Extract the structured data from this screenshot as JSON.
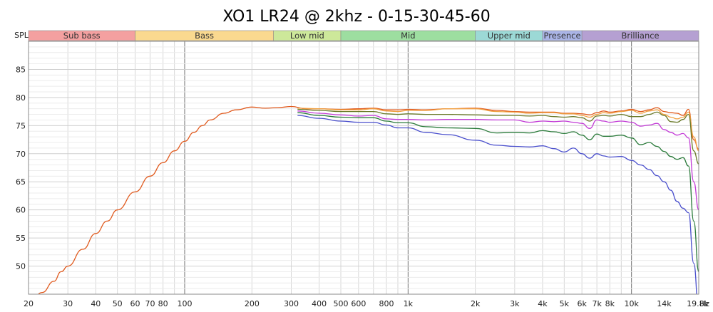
{
  "chart_data": {
    "type": "line",
    "title": "XO1 LR24 @ 2khz - 0-15-30-45-60",
    "ylabel": "SPL",
    "xlabel": "",
    "x_scale": "log",
    "xlim": [
      20,
      20000
    ],
    "ylim": [
      45,
      90
    ],
    "grid": true,
    "legend": "none",
    "x_ticks": [
      {
        "v": 20,
        "l": "20"
      },
      {
        "v": 30,
        "l": "30"
      },
      {
        "v": 40,
        "l": "40"
      },
      {
        "v": 50,
        "l": "50"
      },
      {
        "v": 60,
        "l": "60"
      },
      {
        "v": 70,
        "l": "70"
      },
      {
        "v": 80,
        "l": "80"
      },
      {
        "v": 100,
        "l": "100"
      },
      {
        "v": 200,
        "l": "200"
      },
      {
        "v": 300,
        "l": "300"
      },
      {
        "v": 400,
        "l": "400"
      },
      {
        "v": 500,
        "l": "500"
      },
      {
        "v": 600,
        "l": "600"
      },
      {
        "v": 800,
        "l": "800"
      },
      {
        "v": 1000,
        "l": "1k"
      },
      {
        "v": 2000,
        "l": "2k"
      },
      {
        "v": 3000,
        "l": "3k"
      },
      {
        "v": 4000,
        "l": "4k"
      },
      {
        "v": 5000,
        "l": "5k"
      },
      {
        "v": 6000,
        "l": "6k"
      },
      {
        "v": 7000,
        "l": "7k"
      },
      {
        "v": 8000,
        "l": "8k"
      },
      {
        "v": 10000,
        "l": "10k"
      },
      {
        "v": 14000,
        "l": "14k"
      },
      {
        "v": 19800,
        "l": "19.8k"
      }
    ],
    "x_unit_label": "Hz",
    "y_ticks": [
      50,
      55,
      60,
      65,
      70,
      75,
      80,
      85
    ],
    "bands": [
      {
        "name": "Sub bass",
        "from": 20,
        "to": 60,
        "color": "#f4a0a0"
      },
      {
        "name": "Bass",
        "from": 60,
        "to": 250,
        "color": "#fad98f"
      },
      {
        "name": "Low mid",
        "from": 250,
        "to": 500,
        "color": "#cde89a"
      },
      {
        "name": "Mid",
        "from": 500,
        "to": 2000,
        "color": "#9ddea0"
      },
      {
        "name": "Upper mid",
        "from": 2000,
        "to": 4000,
        "color": "#9cd9d6"
      },
      {
        "name": "Presence",
        "from": 4000,
        "to": 6000,
        "color": "#aab4e6"
      },
      {
        "name": "Brilliance",
        "from": 6000,
        "to": 20000,
        "color": "#b5a0d2"
      }
    ],
    "series": [
      {
        "color": "#e05a1e",
        "points": [
          [
            20,
            43
          ],
          [
            23,
            45.3
          ],
          [
            26,
            47.3
          ],
          [
            28,
            49
          ],
          [
            30,
            50
          ],
          [
            35,
            53
          ],
          [
            40,
            55.8
          ],
          [
            45,
            58
          ],
          [
            50,
            60
          ],
          [
            60,
            63.2
          ],
          [
            70,
            66
          ],
          [
            80,
            68.4
          ],
          [
            90,
            70.5
          ],
          [
            100,
            72.2
          ],
          [
            110,
            73.8
          ],
          [
            120,
            75
          ],
          [
            130,
            76
          ],
          [
            150,
            77.2
          ],
          [
            170,
            77.8
          ],
          [
            200,
            78.3
          ],
          [
            230,
            78.1
          ],
          [
            260,
            78.2
          ],
          [
            300,
            78.4
          ],
          [
            350,
            78
          ],
          [
            400,
            78
          ],
          [
            500,
            77.9
          ],
          [
            600,
            78
          ],
          [
            700,
            78.1
          ],
          [
            800,
            77.8
          ],
          [
            900,
            77.8
          ],
          [
            1000,
            77.9
          ],
          [
            1200,
            77.8
          ],
          [
            1500,
            78
          ],
          [
            2000,
            78.1
          ],
          [
            2500,
            77.7
          ],
          [
            3000,
            77.5
          ],
          [
            3500,
            77.4
          ],
          [
            4000,
            77.4
          ],
          [
            4500,
            77.4
          ],
          [
            5000,
            77.2
          ],
          [
            5500,
            77.2
          ],
          [
            6000,
            77.1
          ],
          [
            6500,
            76.9
          ],
          [
            7000,
            77.3
          ],
          [
            7500,
            77.6
          ],
          [
            8000,
            77.4
          ],
          [
            9000,
            77.6
          ],
          [
            10000,
            77.9
          ],
          [
            11000,
            77.5
          ],
          [
            12000,
            77.8
          ],
          [
            13000,
            78.2
          ],
          [
            14000,
            77.5
          ],
          [
            15000,
            77.3
          ],
          [
            16000,
            77.2
          ],
          [
            17000,
            76.8
          ],
          [
            18000,
            77.9
          ],
          [
            19000,
            72.5
          ],
          [
            20000,
            70.8
          ]
        ]
      },
      {
        "color": "#f0a040",
        "points": [
          [
            320,
            78.1
          ],
          [
            400,
            78
          ],
          [
            500,
            77.8
          ],
          [
            600,
            77.8
          ],
          [
            700,
            78
          ],
          [
            800,
            77.6
          ],
          [
            900,
            77.5
          ],
          [
            1000,
            77.7
          ],
          [
            1200,
            77.7
          ],
          [
            1500,
            78
          ],
          [
            2000,
            78
          ],
          [
            2500,
            77.5
          ],
          [
            3000,
            77.4
          ],
          [
            3500,
            77.2
          ],
          [
            4000,
            77.3
          ],
          [
            4500,
            77.3
          ],
          [
            5000,
            77.1
          ],
          [
            5500,
            77.1
          ],
          [
            6000,
            76.8
          ],
          [
            6500,
            76.5
          ],
          [
            7000,
            77
          ],
          [
            7500,
            77.3
          ],
          [
            8000,
            77.2
          ],
          [
            9000,
            77.5
          ],
          [
            10000,
            77.7
          ],
          [
            11000,
            77.2
          ],
          [
            12000,
            77.6
          ],
          [
            13000,
            77.8
          ],
          [
            14000,
            77
          ],
          [
            15000,
            76.5
          ],
          [
            16000,
            76.2
          ],
          [
            17000,
            76.5
          ],
          [
            18000,
            77.4
          ],
          [
            19000,
            73
          ],
          [
            20000,
            70.5
          ]
        ]
      },
      {
        "color": "#6a7a2a",
        "points": [
          [
            320,
            77.9
          ],
          [
            400,
            77.7
          ],
          [
            500,
            77.5
          ],
          [
            600,
            77.5
          ],
          [
            700,
            77.5
          ],
          [
            800,
            77.1
          ],
          [
            900,
            77
          ],
          [
            1000,
            77.1
          ],
          [
            1200,
            77
          ],
          [
            1500,
            77
          ],
          [
            2000,
            76.9
          ],
          [
            2500,
            76.8
          ],
          [
            3000,
            76.8
          ],
          [
            3500,
            76.7
          ],
          [
            4000,
            76.8
          ],
          [
            4500,
            76.6
          ],
          [
            5000,
            76.5
          ],
          [
            5500,
            76.6
          ],
          [
            6000,
            76.4
          ],
          [
            6500,
            75.8
          ],
          [
            7000,
            76.7
          ],
          [
            7500,
            76.8
          ],
          [
            8000,
            76.7
          ],
          [
            9000,
            77
          ],
          [
            10000,
            76.6
          ],
          [
            11000,
            76.6
          ],
          [
            12000,
            77
          ],
          [
            13000,
            77.4
          ],
          [
            14000,
            76.8
          ],
          [
            15000,
            75.7
          ],
          [
            16000,
            75.6
          ],
          [
            17000,
            76.1
          ],
          [
            18000,
            77
          ],
          [
            19000,
            70.5
          ],
          [
            20000,
            68.2
          ]
        ]
      },
      {
        "color": "#c23bd6",
        "points": [
          [
            320,
            77.6
          ],
          [
            400,
            77.2
          ],
          [
            500,
            76.9
          ],
          [
            600,
            76.7
          ],
          [
            700,
            76.8
          ],
          [
            800,
            76.2
          ],
          [
            900,
            76.1
          ],
          [
            1000,
            76.1
          ],
          [
            1200,
            76
          ],
          [
            1500,
            76.1
          ],
          [
            2000,
            76.1
          ],
          [
            2500,
            76
          ],
          [
            3000,
            76
          ],
          [
            3500,
            75.6
          ],
          [
            4000,
            75.8
          ],
          [
            4500,
            75.7
          ],
          [
            5000,
            75.8
          ],
          [
            5500,
            75.6
          ],
          [
            6000,
            75.4
          ],
          [
            6500,
            74.5
          ],
          [
            7000,
            76
          ],
          [
            7500,
            75.8
          ],
          [
            8000,
            75.6
          ],
          [
            9000,
            75.8
          ],
          [
            10000,
            75.6
          ],
          [
            11000,
            74.9
          ],
          [
            12000,
            75.1
          ],
          [
            13000,
            75.4
          ],
          [
            14000,
            74.3
          ],
          [
            15000,
            73.8
          ],
          [
            16000,
            73.3
          ],
          [
            17000,
            73.6
          ],
          [
            18000,
            72.8
          ],
          [
            19000,
            65
          ],
          [
            20000,
            60
          ]
        ]
      },
      {
        "color": "#2a7a3a",
        "points": [
          [
            320,
            77.3
          ],
          [
            400,
            76.8
          ],
          [
            500,
            76.5
          ],
          [
            600,
            76.4
          ],
          [
            700,
            76.4
          ],
          [
            800,
            75.8
          ],
          [
            900,
            75.5
          ],
          [
            1000,
            75.5
          ],
          [
            1200,
            74.8
          ],
          [
            1500,
            74.6
          ],
          [
            2000,
            74.5
          ],
          [
            2500,
            73.7
          ],
          [
            3000,
            73.8
          ],
          [
            3500,
            73.7
          ],
          [
            4000,
            74.1
          ],
          [
            4500,
            73.9
          ],
          [
            5000,
            73.6
          ],
          [
            5500,
            73.9
          ],
          [
            6000,
            73.3
          ],
          [
            6500,
            72.5
          ],
          [
            7000,
            73.5
          ],
          [
            7500,
            73.1
          ],
          [
            8000,
            73.1
          ],
          [
            9000,
            73.3
          ],
          [
            10000,
            72.8
          ],
          [
            11000,
            71.6
          ],
          [
            12000,
            72
          ],
          [
            13000,
            71.3
          ],
          [
            14000,
            70.4
          ],
          [
            15000,
            69.5
          ],
          [
            16000,
            69
          ],
          [
            17000,
            69.3
          ],
          [
            18000,
            67.8
          ],
          [
            19000,
            58
          ],
          [
            20000,
            49
          ]
        ]
      },
      {
        "color": "#4a4fcc",
        "points": [
          [
            320,
            76.8
          ],
          [
            400,
            76.3
          ],
          [
            500,
            75.8
          ],
          [
            600,
            75.6
          ],
          [
            700,
            75.6
          ],
          [
            800,
            75.1
          ],
          [
            900,
            74.6
          ],
          [
            1000,
            74.6
          ],
          [
            1200,
            73.8
          ],
          [
            1500,
            73.4
          ],
          [
            2000,
            72.4
          ],
          [
            2500,
            71.5
          ],
          [
            3000,
            71.3
          ],
          [
            3500,
            71.2
          ],
          [
            4000,
            71.4
          ],
          [
            4500,
            70.9
          ],
          [
            5000,
            70.3
          ],
          [
            5500,
            71
          ],
          [
            6000,
            70
          ],
          [
            6500,
            69.2
          ],
          [
            7000,
            70
          ],
          [
            7500,
            69.6
          ],
          [
            8000,
            69.4
          ],
          [
            9000,
            69.5
          ],
          [
            10000,
            68.8
          ],
          [
            11000,
            68
          ],
          [
            12000,
            67.2
          ],
          [
            13000,
            66.1
          ],
          [
            14000,
            65
          ],
          [
            15000,
            63.5
          ],
          [
            16000,
            61.5
          ],
          [
            17000,
            60.3
          ],
          [
            18000,
            59.5
          ],
          [
            19000,
            50.5
          ],
          [
            20000,
            42
          ]
        ]
      }
    ]
  }
}
